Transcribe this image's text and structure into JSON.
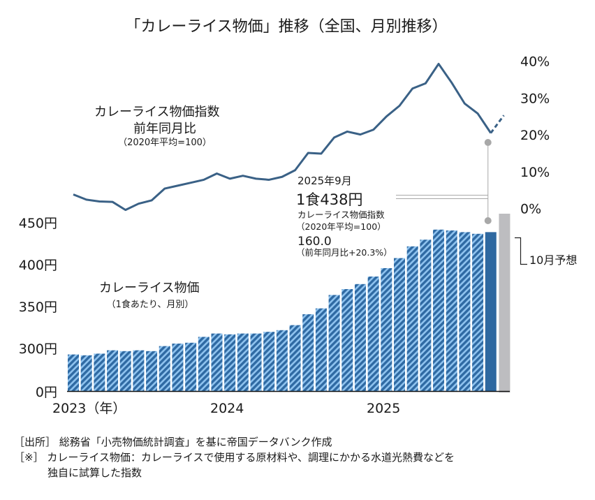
{
  "title": "「カレーライス物価」推移（全国、月別推移）",
  "colors": {
    "line": "#3a6186",
    "bar_dark": "#2f6aa3",
    "bar_light": "#8fc3ef",
    "bar_latest": "#2e68a0",
    "forecast_bar": "#bdbdc0",
    "annotation": "#a8a8a8"
  },
  "chart_data": {
    "type": "bar+line",
    "x_labels": [
      "2023（年）",
      "2024",
      "2025"
    ],
    "months": [
      "2023-01",
      "2023-02",
      "2023-03",
      "2023-04",
      "2023-05",
      "2023-06",
      "2023-07",
      "2023-08",
      "2023-09",
      "2023-10",
      "2023-11",
      "2023-12",
      "2024-01",
      "2024-02",
      "2024-03",
      "2024-04",
      "2024-05",
      "2024-06",
      "2024-07",
      "2024-08",
      "2024-09",
      "2024-10",
      "2024-11",
      "2024-12",
      "2025-01",
      "2025-02",
      "2025-03",
      "2025-04",
      "2025-05",
      "2025-06",
      "2025-07",
      "2025-08",
      "2025-09"
    ],
    "price": {
      "label": "カレーライス物価",
      "sublabel": "（1食あたり、月別）",
      "unit": "円",
      "values": [
        292,
        291,
        293,
        297,
        296,
        297,
        296,
        302,
        305,
        306,
        313,
        317,
        316,
        317,
        317,
        319,
        321,
        327,
        340,
        347,
        363,
        370,
        376,
        385,
        395,
        407,
        421,
        429,
        441,
        440,
        438,
        436,
        438
      ],
      "forecast": {
        "month": "2025-10",
        "value": 460,
        "label": "10月予想"
      },
      "y_ticks": [
        {
          "value": 0,
          "label": "0円"
        },
        {
          "value": 300,
          "label": "300円"
        },
        {
          "value": 350,
          "label": "350円"
        },
        {
          "value": 400,
          "label": "400円"
        },
        {
          "value": 450,
          "label": "450円"
        }
      ],
      "axis_break": [
        0,
        300
      ]
    },
    "yoy": {
      "label": "カレーライス物価指数",
      "label2": "前年同月比",
      "sublabel": "（2020年平均=100）",
      "unit": "%",
      "values": [
        3.6,
        2.2,
        1.7,
        1.6,
        -0.6,
        1.1,
        2.0,
        5.2,
        6.0,
        6.8,
        7.6,
        9.3,
        7.9,
        8.7,
        7.9,
        7.6,
        8.4,
        10.2,
        14.9,
        14.7,
        19.1,
        20.7,
        19.9,
        21.2,
        24.8,
        27.7,
        32.4,
        33.8,
        39.1,
        34.0,
        28.3,
        25.6,
        20.3
      ],
      "forecast_value": 25.1,
      "y_ticks": [
        "0%",
        "10%",
        "20%",
        "30%",
        "40%"
      ],
      "ylim": [
        0,
        40
      ]
    },
    "annotation": {
      "date": "2025年9月",
      "price": "1食438円",
      "index_label": "カレーライス物価指数",
      "index_base": "（2020年平均=100）",
      "index_value": "160.0",
      "yoy": "（前年同月比+20.3%）"
    }
  },
  "footer": {
    "source": "［出所］ 総務省「小売物価統計調査」を基に帝国データバンク作成",
    "note": "［※］ カレーライス物価：カレーライスで使用する原材料や、調理にかかる水道光熱費などを",
    "note2": "独自に試算した指数"
  }
}
